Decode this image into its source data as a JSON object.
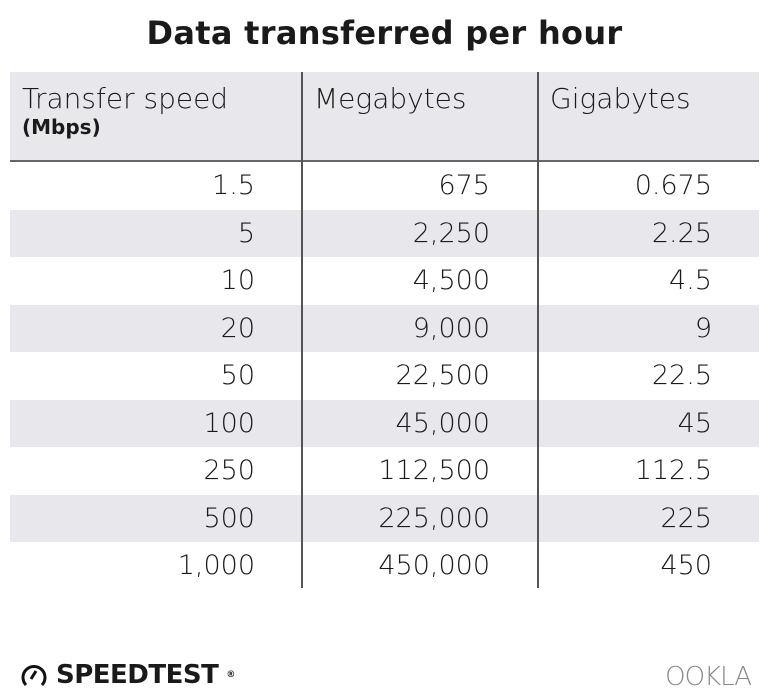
{
  "chart_data": {
    "type": "table",
    "title": "Data transferred per hour",
    "columns": [
      {
        "label": "Transfer speed",
        "sublabel": "(Mbps)"
      },
      {
        "label": "Megabytes"
      },
      {
        "label": "Gigabytes"
      }
    ],
    "rows": [
      [
        "1.5",
        "675",
        "0.675"
      ],
      [
        "5",
        "2,250",
        "2.25"
      ],
      [
        "10",
        "4,500",
        "4.5"
      ],
      [
        "20",
        "9,000",
        "9"
      ],
      [
        "50",
        "22,500",
        "22.5"
      ],
      [
        "100",
        "45,000",
        "45"
      ],
      [
        "250",
        "112,500",
        "112.5"
      ],
      [
        "500",
        "225,000",
        "225"
      ],
      [
        "1,000",
        "450,000",
        "450"
      ]
    ],
    "colors": {
      "band": "#e8e8ec",
      "lines": "#555555",
      "text": "#1a1a1a"
    }
  },
  "footer": {
    "brand": "SPEEDTEST",
    "brand_mark": "®",
    "partner": "OOKLA",
    "brand_icon": "speedometer-icon"
  }
}
